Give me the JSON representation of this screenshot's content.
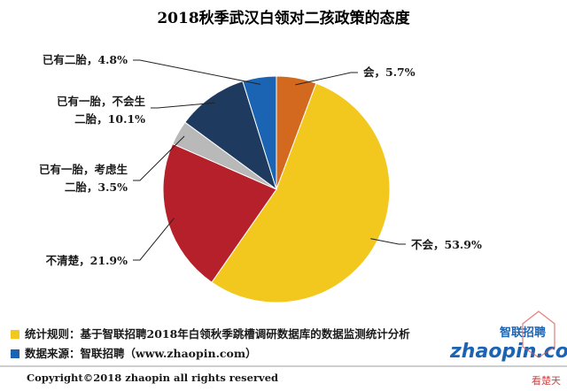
{
  "chart_data": {
    "type": "pie",
    "title": "2018秋季武汉白领对二孩政策的态度",
    "slices": [
      {
        "label": "会",
        "value": 5.7,
        "value_text": "5.7%",
        "color": "#d2691e"
      },
      {
        "label": "不会",
        "value": 53.9,
        "value_text": "53.9%",
        "color": "#f2c81f"
      },
      {
        "label": "不清楚",
        "value": 21.9,
        "value_text": "21.9%",
        "color": "#b5202a"
      },
      {
        "label": "已有一胎，考虑生二胎",
        "value": 3.5,
        "value_text": "3.5%",
        "color": "#b9b9b9"
      },
      {
        "label": "已有一胎，不会生二胎",
        "value": 10.1,
        "value_text": "10.1%",
        "color": "#1f3a5f"
      },
      {
        "label": "已有二胎",
        "value": 4.8,
        "value_text": "4.8%",
        "color": "#1b64b4"
      }
    ],
    "display_labels": [
      [
        "会，5.7%"
      ],
      [
        "不会，53.9%"
      ],
      [
        "不清楚，21.9%"
      ],
      [
        "已有一胎，考虑生",
        "二胎，3.5%"
      ],
      [
        "已有一胎，不会生",
        "二胎，10.1%"
      ],
      [
        "已有二胎，4.8%"
      ]
    ]
  },
  "notes": [
    {
      "text": "统计规则：基于智联招聘2018年白领秋季跳槽调研数据库的数据监测统计分析",
      "color": "#f2c81f"
    },
    {
      "text": "数据来源：智联招聘（www.zhaopin.com）",
      "color": "#1b64b4"
    }
  ],
  "copyright": "Copyright©2018 zhaopin all rights reserved",
  "logo": {
    "main": "zhaopin.com",
    "sub": "智联招聘"
  },
  "watermark": "看楚天"
}
